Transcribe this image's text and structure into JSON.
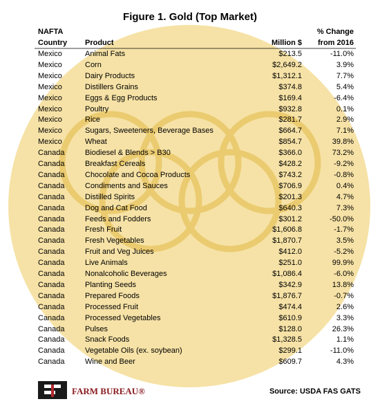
{
  "title": "Figure 1. Gold (Top Market)",
  "table": {
    "header": [
      [
        "NAFTA",
        "Country"
      ],
      [
        "Product"
      ],
      [
        "Million $"
      ],
      [
        "% Change",
        "from 2016"
      ]
    ],
    "rows": [
      [
        "Mexico",
        "Animal Fats",
        "$213.5",
        "-11.0%"
      ],
      [
        "Mexico",
        "Corn",
        "$2,649.2",
        "3.9%"
      ],
      [
        "Mexico",
        "Dairy Products",
        "$1,312.1",
        "7.7%"
      ],
      [
        "Mexico",
        "Distillers Grains",
        "$374.8",
        "5.4%"
      ],
      [
        "Mexico",
        "Eggs & Egg Products",
        "$169.4",
        "-6.4%"
      ],
      [
        "Mexico",
        "Poultry",
        "$932.8",
        "0.1%"
      ],
      [
        "Mexico",
        "Rice",
        "$281.7",
        "2.9%"
      ],
      [
        "Mexico",
        "Sugars, Sweeteners, Beverage Bases",
        "$664.7",
        "7.1%"
      ],
      [
        "Mexico",
        "Wheat",
        "$854.7",
        "39.8%"
      ],
      [
        "Canada",
        "Biodiesel & Blends > B30",
        "$366.0",
        "73.2%"
      ],
      [
        "Canada",
        "Breakfast Cereals",
        "$428.2",
        "-9.2%"
      ],
      [
        "Canada",
        "Chocolate and Cocoa Products",
        "$743.2",
        "-0.8%"
      ],
      [
        "Canada",
        "Condiments and Sauces",
        "$706.9",
        "0.4%"
      ],
      [
        "Canada",
        "Distilled Spirits",
        "$201.3",
        "4.7%"
      ],
      [
        "Canada",
        "Dog and Cat Food",
        "$640.3",
        "7.3%"
      ],
      [
        "Canada",
        "Feeds and Fodders",
        "$301.2",
        "-50.0%"
      ],
      [
        "Canada",
        "Fresh Fruit",
        "$1,606.8",
        "-1.7%"
      ],
      [
        "Canada",
        "Fresh Vegetables",
        "$1,870.7",
        "3.5%"
      ],
      [
        "Canada",
        "Fruit and Veg Juices",
        "$412.0",
        "-5.2%"
      ],
      [
        "Canada",
        "Live Animals",
        "$251.0",
        "99.9%"
      ],
      [
        "Canada",
        "Nonalcoholic Beverages",
        "$1,086.4",
        "-6.0%"
      ],
      [
        "Canada",
        "Planting Seeds",
        "$342.9",
        "13.8%"
      ],
      [
        "Canada",
        "Prepared Foods",
        "$1,876.7",
        "-0.7%"
      ],
      [
        "Canada",
        "Processed Fruit",
        "$474.4",
        "2.6%"
      ],
      [
        "Canada",
        "Processed Vegetables",
        "$610.9",
        "3.3%"
      ],
      [
        "Canada",
        "Pulses",
        "$128.0",
        "26.3%"
      ],
      [
        "Canada",
        "Snack Foods",
        "$1,328.5",
        "1.1%"
      ],
      [
        "Canada",
        "Vegetable Oils (ex. soybean)",
        "$299.1",
        "-11.0%"
      ],
      [
        "Canada",
        "Wine and Beer",
        "$609.7",
        "4.3%"
      ]
    ]
  },
  "footer": {
    "brand": "FARM BUREAU®",
    "source": "Source: USDA FAS GATS"
  }
}
